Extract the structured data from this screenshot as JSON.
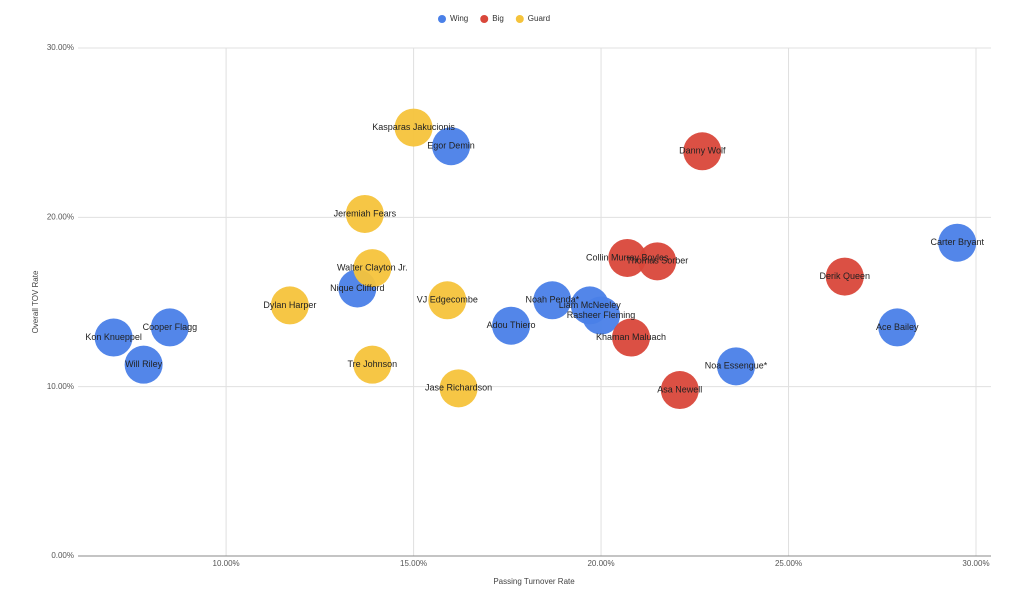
{
  "chart_data": {
    "type": "scatter",
    "x_label": "Passing Turnover Rate",
    "y_label": "Overall TOV Rate",
    "xlim": [
      6.05,
      30.4
    ],
    "ylim": [
      0,
      30
    ],
    "xticks": [
      {
        "value": 10,
        "label": "10.00%"
      },
      {
        "value": 15,
        "label": "15.00%"
      },
      {
        "value": 20,
        "label": "20.00%"
      },
      {
        "value": 25,
        "label": "25.00%"
      },
      {
        "value": 30,
        "label": "30.00%"
      }
    ],
    "yticks": [
      {
        "value": 0,
        "label": "0.00%"
      },
      {
        "value": 10,
        "label": "10.00%"
      },
      {
        "value": 20,
        "label": "20.00%"
      },
      {
        "value": 30,
        "label": "30.00%"
      }
    ],
    "grid": true,
    "legend": "top",
    "series": [
      {
        "name": "Wing",
        "color": "#4a80e8",
        "labels": [
          "Kon Knueppel",
          "Cooper Flagg",
          "Will Riley",
          "Egor Demin",
          "Nique Clifford",
          "Adou Thiero",
          "Noah Penda*",
          "Liam McNeeley",
          "Rasheer Fleming",
          "Noa Essengue*",
          "Ace Bailey",
          "Carter Bryant"
        ],
        "x": [
          7.0,
          8.5,
          7.8,
          16.0,
          13.5,
          17.6,
          18.7,
          19.7,
          20.0,
          23.6,
          27.9,
          29.5
        ],
        "values": [
          12.9,
          13.5,
          11.3,
          24.2,
          15.8,
          13.6,
          15.1,
          14.8,
          14.2,
          11.2,
          13.5,
          18.5
        ]
      },
      {
        "name": "Big",
        "color": "#d9473a",
        "labels": [
          "Collin Murray Boyles",
          "Thomas Sorber",
          "Khaman Maluach",
          "Danny Wolf",
          "Asa Newell",
          "Derik Queen"
        ],
        "x": [
          20.7,
          21.5,
          20.8,
          22.7,
          22.1,
          26.5
        ],
        "values": [
          17.6,
          17.4,
          12.9,
          23.9,
          9.8,
          16.5
        ]
      },
      {
        "name": "Guard",
        "color": "#f5c33b",
        "labels": [
          "Dylan Harper",
          "Kasparas Jakucionis",
          "Jeremiah Fears",
          "Walter Clayton Jr.",
          "Tre Johnson",
          "VJ Edgecombe",
          "Jase Richardson"
        ],
        "x": [
          11.7,
          15.0,
          13.7,
          13.9,
          13.9,
          15.9,
          16.2
        ],
        "values": [
          14.8,
          25.3,
          20.2,
          17.0,
          11.3,
          15.1,
          9.9
        ]
      }
    ]
  }
}
